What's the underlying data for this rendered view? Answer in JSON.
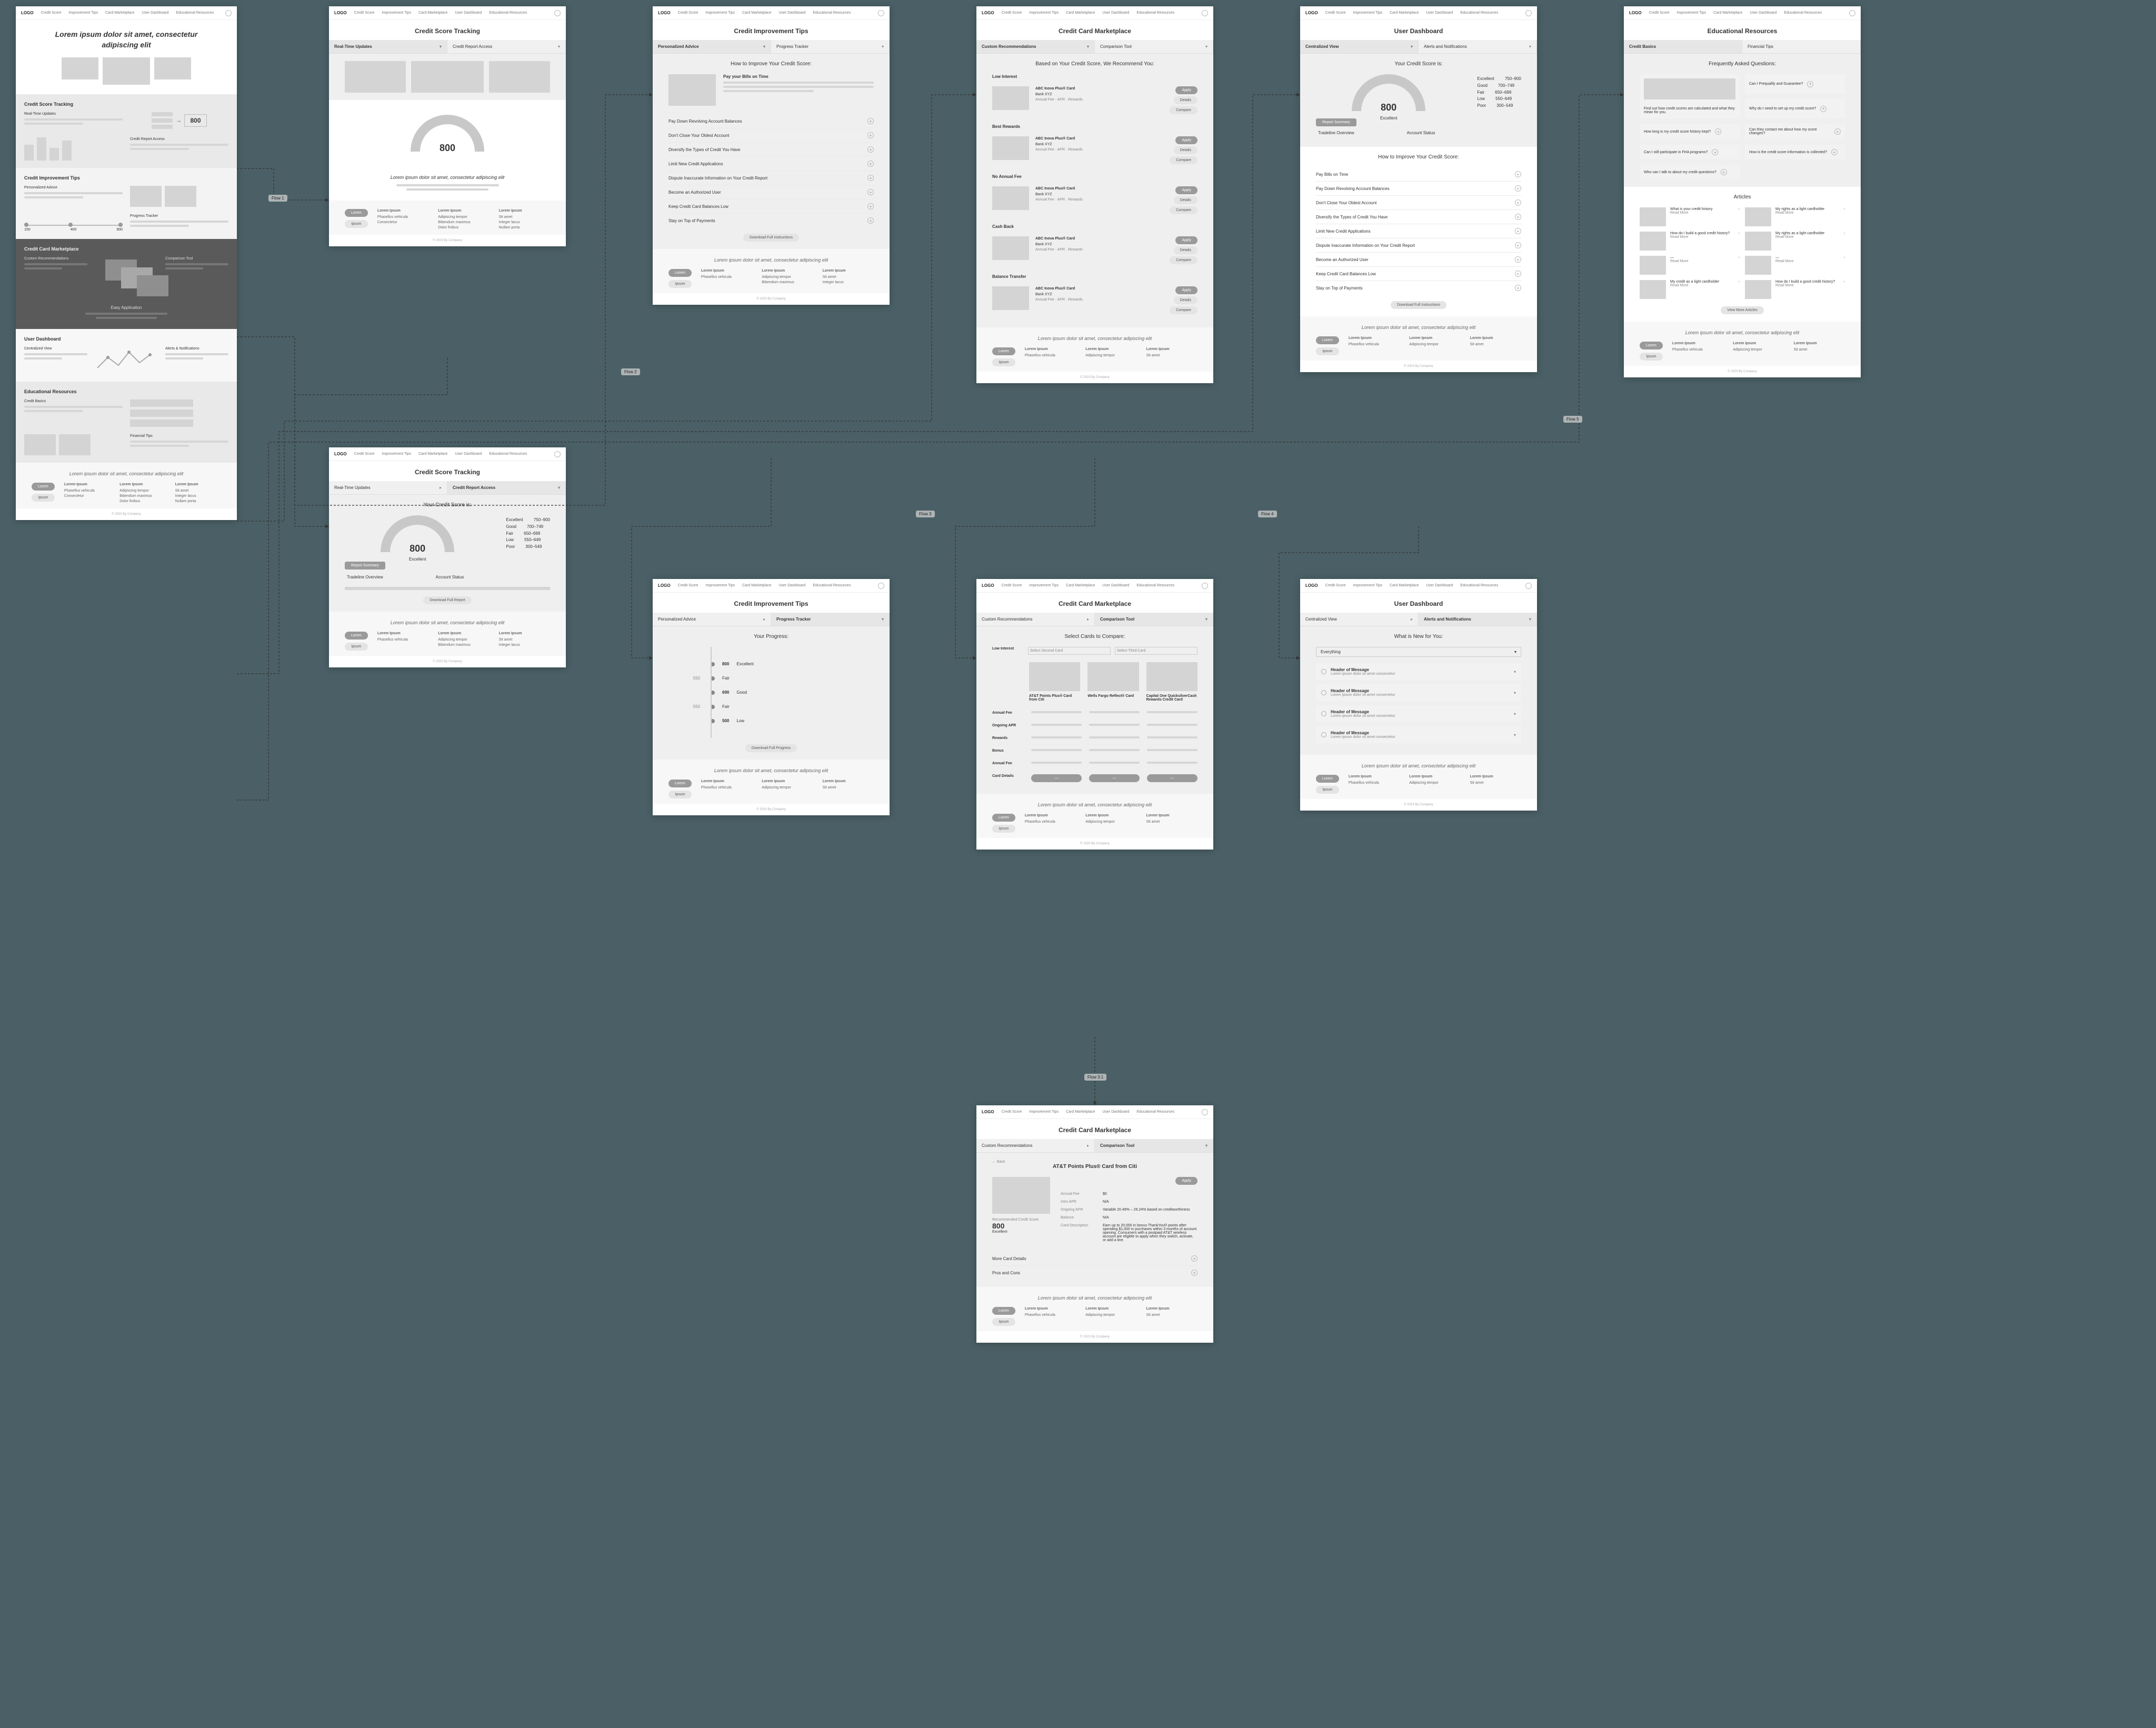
{
  "colors": {
    "canvas": "#4a6066",
    "frame_bg": "#ffffff",
    "band": "#efefef",
    "ph": "#d4d4d4",
    "dark": "#5a5a5a"
  },
  "nav": {
    "logo": "LOGO",
    "links": [
      "Credit Score",
      "Improvement Tips",
      "Card Marketplace",
      "User Dashboard",
      "Educational Resources"
    ]
  },
  "footer": {
    "tagline": "Lorem ipsum dolor sit amet, consectetur adipiscing elit",
    "col1_h": "Lorem Ipsum",
    "col1_a": "Phasellus vehicula",
    "col1_b": "Consectetur",
    "col2_h": "Lorem Ipsum",
    "col2_a": "Adipiscing tempor",
    "col2_b": "Bibendum maximus",
    "col2_c": "Dolor finibus",
    "col3_h": "Lorem Ipsum",
    "col3_a": "Sit amet",
    "col3_b": "Integer lacus",
    "col3_c": "Nullam porta",
    "copyright": "© 2023 By Company"
  },
  "landing": {
    "hero": "Lorem ipsum dolor sit amet, consectetur adipiscing elit",
    "s1_title": "Credit Score Tracking",
    "s1_a": "Real-Time Updates",
    "s1_b": "Credit Report Access",
    "s1_score": "800",
    "s2_title": "Credit Improvement Tips",
    "s2_a": "Personalized Advice",
    "s2_b": "Progress Tracker",
    "s2_t1": "150",
    "s2_t2": "400",
    "s2_t3": "900",
    "s3_title": "Credit Card Marketplace",
    "s3_a": "Custom Recommendations",
    "s3_b": "Comparison Tool",
    "s3_c": "Easy Application",
    "s4_title": "User Dashboard",
    "s4_a": "Centralized View",
    "s4_b": "Alerts & Notifications",
    "s5_title": "Educational Resources",
    "s5_a": "Credit Basics",
    "s5_b": "Financial Tips"
  },
  "cst_a": {
    "title": "Credit Score Tracking",
    "tab1": "Real-Time Updates",
    "tab2": "Credit Report Access",
    "score": "800",
    "cta_title": "Lorem ipsum dolor sit amet, consectetur adipiscing elit"
  },
  "cst_b": {
    "title": "Credit Score Tracking",
    "tab1": "Real-Time Updates",
    "tab2": "Credit Report Access",
    "sec_title": "Your Credit Score is:",
    "score": "800",
    "label": "Excellent",
    "ranges": [
      {
        "name": "Excellent",
        "range": "750–900"
      },
      {
        "name": "Good",
        "range": "700–749"
      },
      {
        "name": "Fair",
        "range": "650–699"
      },
      {
        "name": "Low",
        "range": "550–649"
      },
      {
        "name": "Poor",
        "range": "300–549"
      }
    ],
    "rs_title": "Report Summary",
    "col1": "Tradeline Overview",
    "col2": "Account Status",
    "download": "Download Full Report"
  },
  "tips_a": {
    "title": "Credit Improvement Tips",
    "tab1": "Personalized Advice",
    "tab2": "Progress Tracker",
    "sec_title": "How to Improve Your Credit Score:",
    "items": [
      "Pay your Bills on Time",
      "Pay Down Revolving Account Balances",
      "Don't Close Your Oldest Account",
      "Diversify the Types of Credit You Have",
      "Limit New Credit Applications",
      "Dispute Inaccurate Information on Your Credit Report",
      "Become an Authorized User",
      "Keep Credit Card Balances Low",
      "Stay on Top of Payments"
    ],
    "download": "Download Full Instructions"
  },
  "tips_b": {
    "title": "Credit Improvement Tips",
    "tab1": "Personalized Advice",
    "tab2": "Progress Tracker",
    "sec_title": "Your Progress:",
    "marks": [
      {
        "date": "",
        "score": "800",
        "label": "Excellent"
      },
      {
        "date": "550",
        "score": "",
        "label": "Fair"
      },
      {
        "date": "",
        "score": "690",
        "label": "Good"
      },
      {
        "date": "550",
        "score": "",
        "label": "Fair"
      },
      {
        "date": "",
        "score": "500",
        "label": "Low"
      }
    ],
    "download": "Download Full Progress"
  },
  "mkt_a": {
    "title": "Credit Card Marketplace",
    "tab1": "Custom Recommendations",
    "tab2": "Comparison Tool",
    "sec_title": "Based on Your Credit Score, We Recommend You:",
    "filters": [
      "Low Interest",
      "Best Rewards",
      "No Annual Fee",
      "Cash Back",
      "Balance Transfer"
    ],
    "card_name": "ABC Inova Plus® Card",
    "card_bank": "Bank XYZ",
    "details": "Details",
    "apply": "Apply",
    "compare": "Compare"
  },
  "mkt_b": {
    "title": "Credit Card Marketplace",
    "tab1": "Custom Recommendations",
    "tab2": "Comparison Tool",
    "sec_title": "Select Cards to Compare:",
    "sel1": "Select Second Card",
    "sel2": "Select Third Card",
    "cards": [
      "AT&T Points Plus® Card from Citi",
      "Wells Fargo Reflect® Card",
      "Capital One QuicksilverCash Rewards Credit Card"
    ],
    "rows": [
      "Annual Fee",
      "Ongoing APR",
      "Rewards",
      "Bonus",
      "Annual Fee"
    ],
    "cta": "Card Details"
  },
  "mkt_c": {
    "title": "Credit Card Marketplace",
    "tab1": "Custom Recommendations",
    "tab2": "Comparison Tool",
    "back": "← Back",
    "card_title": "AT&T Points Plus® Card from Citi",
    "score": "800",
    "score_label": "Excellent",
    "rec": "Recommended Credit Score",
    "apply": "Apply",
    "details": [
      {
        "k": "Annual Fee",
        "v": "$0"
      },
      {
        "k": "Intro APR",
        "v": "N/A"
      },
      {
        "k": "Ongoing APR",
        "v": "Variable 20.49% – 29.24% based on creditworthiness"
      },
      {
        "k": "Balance",
        "v": "N/A"
      },
      {
        "k": "Card Description",
        "v": "Earn up to 20,000 in bonus ThankYou® points after spending $1,000 in purchases within 3 months of account opening. Consumers with a postpaid AT&T wireless account are eligible to apply when they switch, activate, or add a line."
      }
    ],
    "more": "More Card Details",
    "pros": "Pros and Cons"
  },
  "dash_a": {
    "title": "User Dashboard",
    "tab1": "Centralized View",
    "tab2": "Alerts and Notifications",
    "sec_title": "Your Credit Score is:",
    "score": "800",
    "label": "Excellent",
    "ranges": [
      {
        "name": "Excellent",
        "range": "750–900"
      },
      {
        "name": "Good",
        "range": "700–749"
      },
      {
        "name": "Fair",
        "range": "650–699"
      },
      {
        "name": "Low",
        "range": "550–649"
      },
      {
        "name": "Poor",
        "range": "300–549"
      }
    ],
    "rs_title": "Report Summary",
    "col1": "Tradeline Overview",
    "col2": "Account Status",
    "tips_title": "How to Improve Your Credit Score:",
    "tips": [
      "Pay Bills on Time",
      "Pay Down Revolving Account Balances",
      "Don't Close Your Oldest Account",
      "Diversify the Types of Credit You Have",
      "Limit New Credit Applications",
      "Dispute Inaccurate Information on Your Credit Report",
      "Become an Authorized User",
      "Keep Credit Card Balances Low",
      "Stay on Top of Payments"
    ],
    "download": "Download Full Instructions"
  },
  "dash_b": {
    "title": "User Dashboard",
    "tab1": "Centralized View",
    "tab2": "Alerts and Notifications",
    "sec_title": "What is New for You:",
    "all": "Everything",
    "msgs": [
      "Header of Message",
      "Header of Message",
      "Header of Message",
      "Header of Message"
    ]
  },
  "edu": {
    "title": "Educational Resources",
    "tab1": "Credit Basics",
    "tab2": "Financial Tips",
    "faq_title": "Frequently Asked Questions:",
    "faqs": [
      "Can I Prequalify and Guarantee?",
      "Why do I need to set up my credit score?",
      "How long is my credit score history kept?",
      "Can they contact me about how my score changes?",
      "Can I still participate in FHA programs?",
      "How is the credit score information is collected?",
      "",
      "Who can I talk to about my credit questions?"
    ],
    "faq_featured": "Find out how credit scores are calculated and what they mean for you.",
    "art_title": "Articles",
    "articles": [
      "What is your credit history",
      "My rights as a light cardholder",
      "How do I build a good credit history?",
      "My rights as a light cardholder",
      "",
      "",
      "My credit as a light cardholder",
      "How do I build a good credit history?"
    ],
    "more": "View More Articles"
  },
  "flows": [
    "Flow 1",
    "Flow 2",
    "Flow 3",
    "Flow 3.1",
    "Flow 4",
    "Flow 5"
  ]
}
